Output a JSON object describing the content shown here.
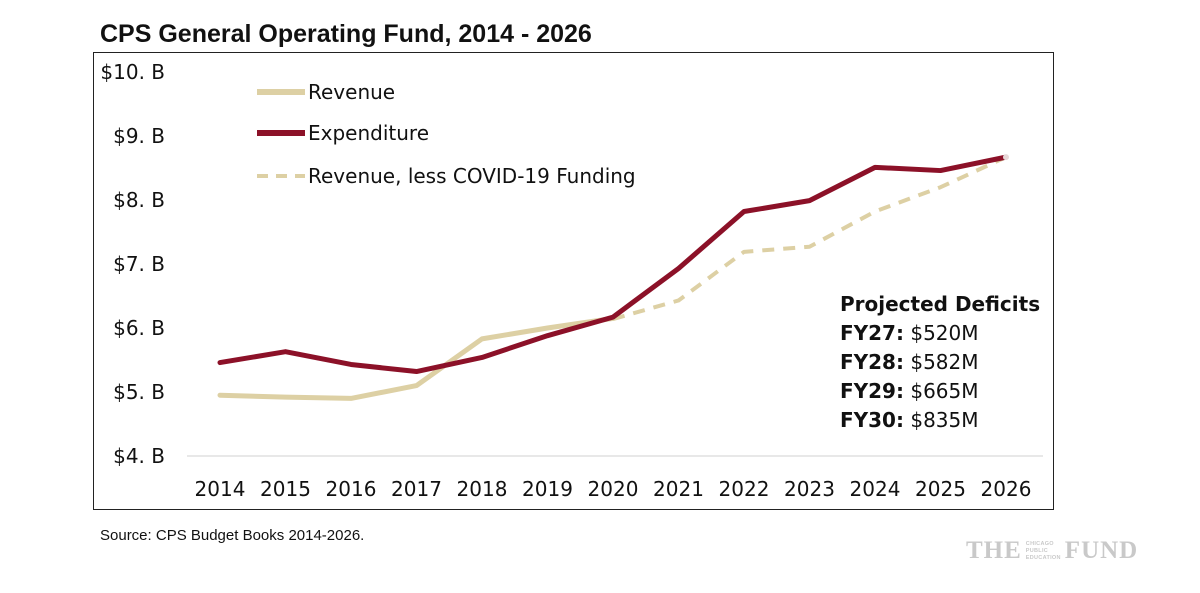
{
  "chart_data": {
    "type": "line",
    "title": "CPS General Operating Fund, 2014 - 2026",
    "x": [
      "2014",
      "2015",
      "2016",
      "2017",
      "2018",
      "2019",
      "2020",
      "2021",
      "2022",
      "2023",
      "2024",
      "2025",
      "2026"
    ],
    "y_tick_labels": [
      "$10. B",
      "$9. B",
      "$8. B",
      "$7. B",
      "$6. B",
      "$5. B",
      "$4. B"
    ],
    "y_ticks": [
      10,
      9,
      8,
      7,
      6,
      5,
      4
    ],
    "ylim": [
      4,
      10
    ],
    "grid": false,
    "legend_position": "top-left",
    "series": [
      {
        "name": "Revenue",
        "color": "#ddd0a4",
        "style": "solid",
        "values": [
          4.95,
          4.92,
          4.9,
          5.1,
          5.83,
          6.0,
          6.15,
          null,
          null,
          null,
          null,
          null,
          null
        ]
      },
      {
        "name": "Expenditure",
        "color": "#8c1128",
        "style": "solid",
        "values": [
          5.46,
          5.63,
          5.43,
          5.32,
          5.54,
          5.88,
          6.17,
          6.93,
          7.82,
          7.99,
          8.51,
          8.46,
          8.67
        ]
      },
      {
        "name": "Revenue, less COVID-19 Funding",
        "color": "#ddd0a4",
        "style": "dashed",
        "values": [
          null,
          null,
          null,
          null,
          null,
          null,
          6.14,
          6.43,
          7.19,
          7.27,
          7.82,
          8.2,
          8.67
        ]
      }
    ]
  },
  "deficits": {
    "heading": "Projected Deficits",
    "items": [
      {
        "label": "FY27:",
        "value": "$520M"
      },
      {
        "label": "FY28:",
        "value": "$582M"
      },
      {
        "label": "FY29:",
        "value": "$665M"
      },
      {
        "label": "FY30:",
        "value": "$835M"
      }
    ]
  },
  "source": "Source: CPS Budget Books 2014-2026.",
  "logo": {
    "left": "THE",
    "small": [
      "CHICAGO",
      "PUBLIC",
      "EDUCATION"
    ],
    "right": "FUND"
  }
}
